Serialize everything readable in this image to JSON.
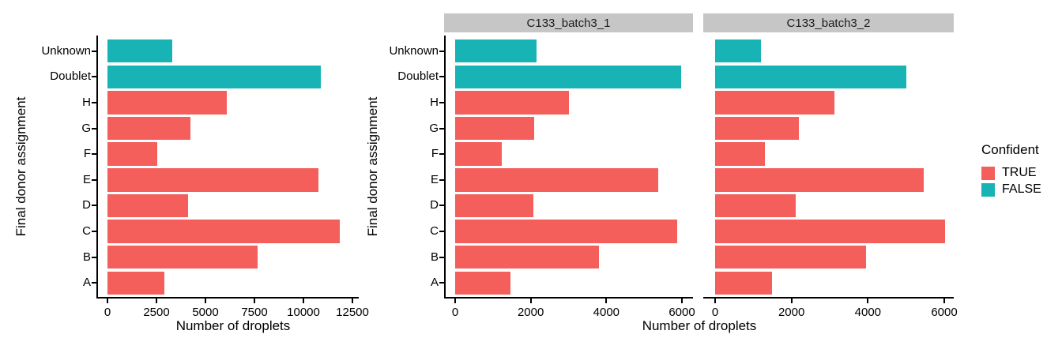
{
  "figure": {
    "background": "#ffffff"
  },
  "colors": {
    "true_bar": "#F45E5B",
    "false_bar": "#18B3B5",
    "strip_bg": "#C6C6C6",
    "axis": "#000000"
  },
  "legend": {
    "title": "Confident",
    "items": [
      {
        "label": "TRUE",
        "color": "#F45E5B"
      },
      {
        "label": "FALSE",
        "color": "#18B3B5"
      }
    ]
  },
  "chart_data": [
    {
      "type": "bar",
      "orientation": "horizontal",
      "facet": "",
      "xlabel": "Number of droplets",
      "ylabel": "Final donor assignment",
      "xlim": [
        0,
        12500
      ],
      "xticks": [
        0,
        2500,
        5000,
        7500,
        10000,
        12500
      ],
      "grid": false,
      "categories_top_to_bottom": [
        "Unknown",
        "Doublet",
        "H",
        "G",
        "F",
        "E",
        "D",
        "C",
        "B",
        "A"
      ],
      "bars": [
        {
          "category": "Unknown",
          "value": 3300,
          "confident": "FALSE"
        },
        {
          "category": "Doublet",
          "value": 10900,
          "confident": "FALSE"
        },
        {
          "category": "H",
          "value": 6100,
          "confident": "TRUE"
        },
        {
          "category": "G",
          "value": 4250,
          "confident": "TRUE"
        },
        {
          "category": "F",
          "value": 2550,
          "confident": "TRUE"
        },
        {
          "category": "E",
          "value": 10750,
          "confident": "TRUE"
        },
        {
          "category": "D",
          "value": 4100,
          "confident": "TRUE"
        },
        {
          "category": "C",
          "value": 11850,
          "confident": "TRUE"
        },
        {
          "category": "B",
          "value": 7650,
          "confident": "TRUE"
        },
        {
          "category": "A",
          "value": 2900,
          "confident": "TRUE"
        }
      ]
    },
    {
      "type": "bar",
      "orientation": "horizontal",
      "facet": "C133_batch3_1",
      "xlabel": "Number of droplets",
      "ylabel": "Final donor assignment",
      "xlim": [
        0,
        6000
      ],
      "xticks": [
        0,
        2000,
        4000,
        6000
      ],
      "grid": false,
      "categories_top_to_bottom": [
        "Unknown",
        "Doublet",
        "H",
        "G",
        "F",
        "E",
        "D",
        "C",
        "B",
        "A"
      ],
      "bars": [
        {
          "category": "Unknown",
          "value": 2150,
          "confident": "FALSE"
        },
        {
          "category": "Doublet",
          "value": 5980,
          "confident": "FALSE"
        },
        {
          "category": "H",
          "value": 3000,
          "confident": "TRUE"
        },
        {
          "category": "G",
          "value": 2100,
          "confident": "TRUE"
        },
        {
          "category": "F",
          "value": 1240,
          "confident": "TRUE"
        },
        {
          "category": "E",
          "value": 5370,
          "confident": "TRUE"
        },
        {
          "category": "D",
          "value": 2060,
          "confident": "TRUE"
        },
        {
          "category": "C",
          "value": 5880,
          "confident": "TRUE"
        },
        {
          "category": "B",
          "value": 3800,
          "confident": "TRUE"
        },
        {
          "category": "A",
          "value": 1460,
          "confident": "TRUE"
        }
      ]
    },
    {
      "type": "bar",
      "orientation": "horizontal",
      "facet": "C133_batch3_2",
      "xlabel": "Number of droplets",
      "ylabel": "Final donor assignment",
      "xlim": [
        0,
        6000
      ],
      "xticks": [
        0,
        2000,
        4000,
        6000
      ],
      "grid": false,
      "categories_top_to_bottom": [
        "Unknown",
        "Doublet",
        "H",
        "G",
        "F",
        "E",
        "D",
        "C",
        "B",
        "A"
      ],
      "bars": [
        {
          "category": "Unknown",
          "value": 1200,
          "confident": "FALSE"
        },
        {
          "category": "Doublet",
          "value": 5000,
          "confident": "FALSE"
        },
        {
          "category": "H",
          "value": 3120,
          "confident": "TRUE"
        },
        {
          "category": "G",
          "value": 2190,
          "confident": "TRUE"
        },
        {
          "category": "F",
          "value": 1300,
          "confident": "TRUE"
        },
        {
          "category": "E",
          "value": 5470,
          "confident": "TRUE"
        },
        {
          "category": "D",
          "value": 2100,
          "confident": "TRUE"
        },
        {
          "category": "C",
          "value": 6030,
          "confident": "TRUE"
        },
        {
          "category": "B",
          "value": 3950,
          "confident": "TRUE"
        },
        {
          "category": "A",
          "value": 1480,
          "confident": "TRUE"
        }
      ]
    }
  ]
}
